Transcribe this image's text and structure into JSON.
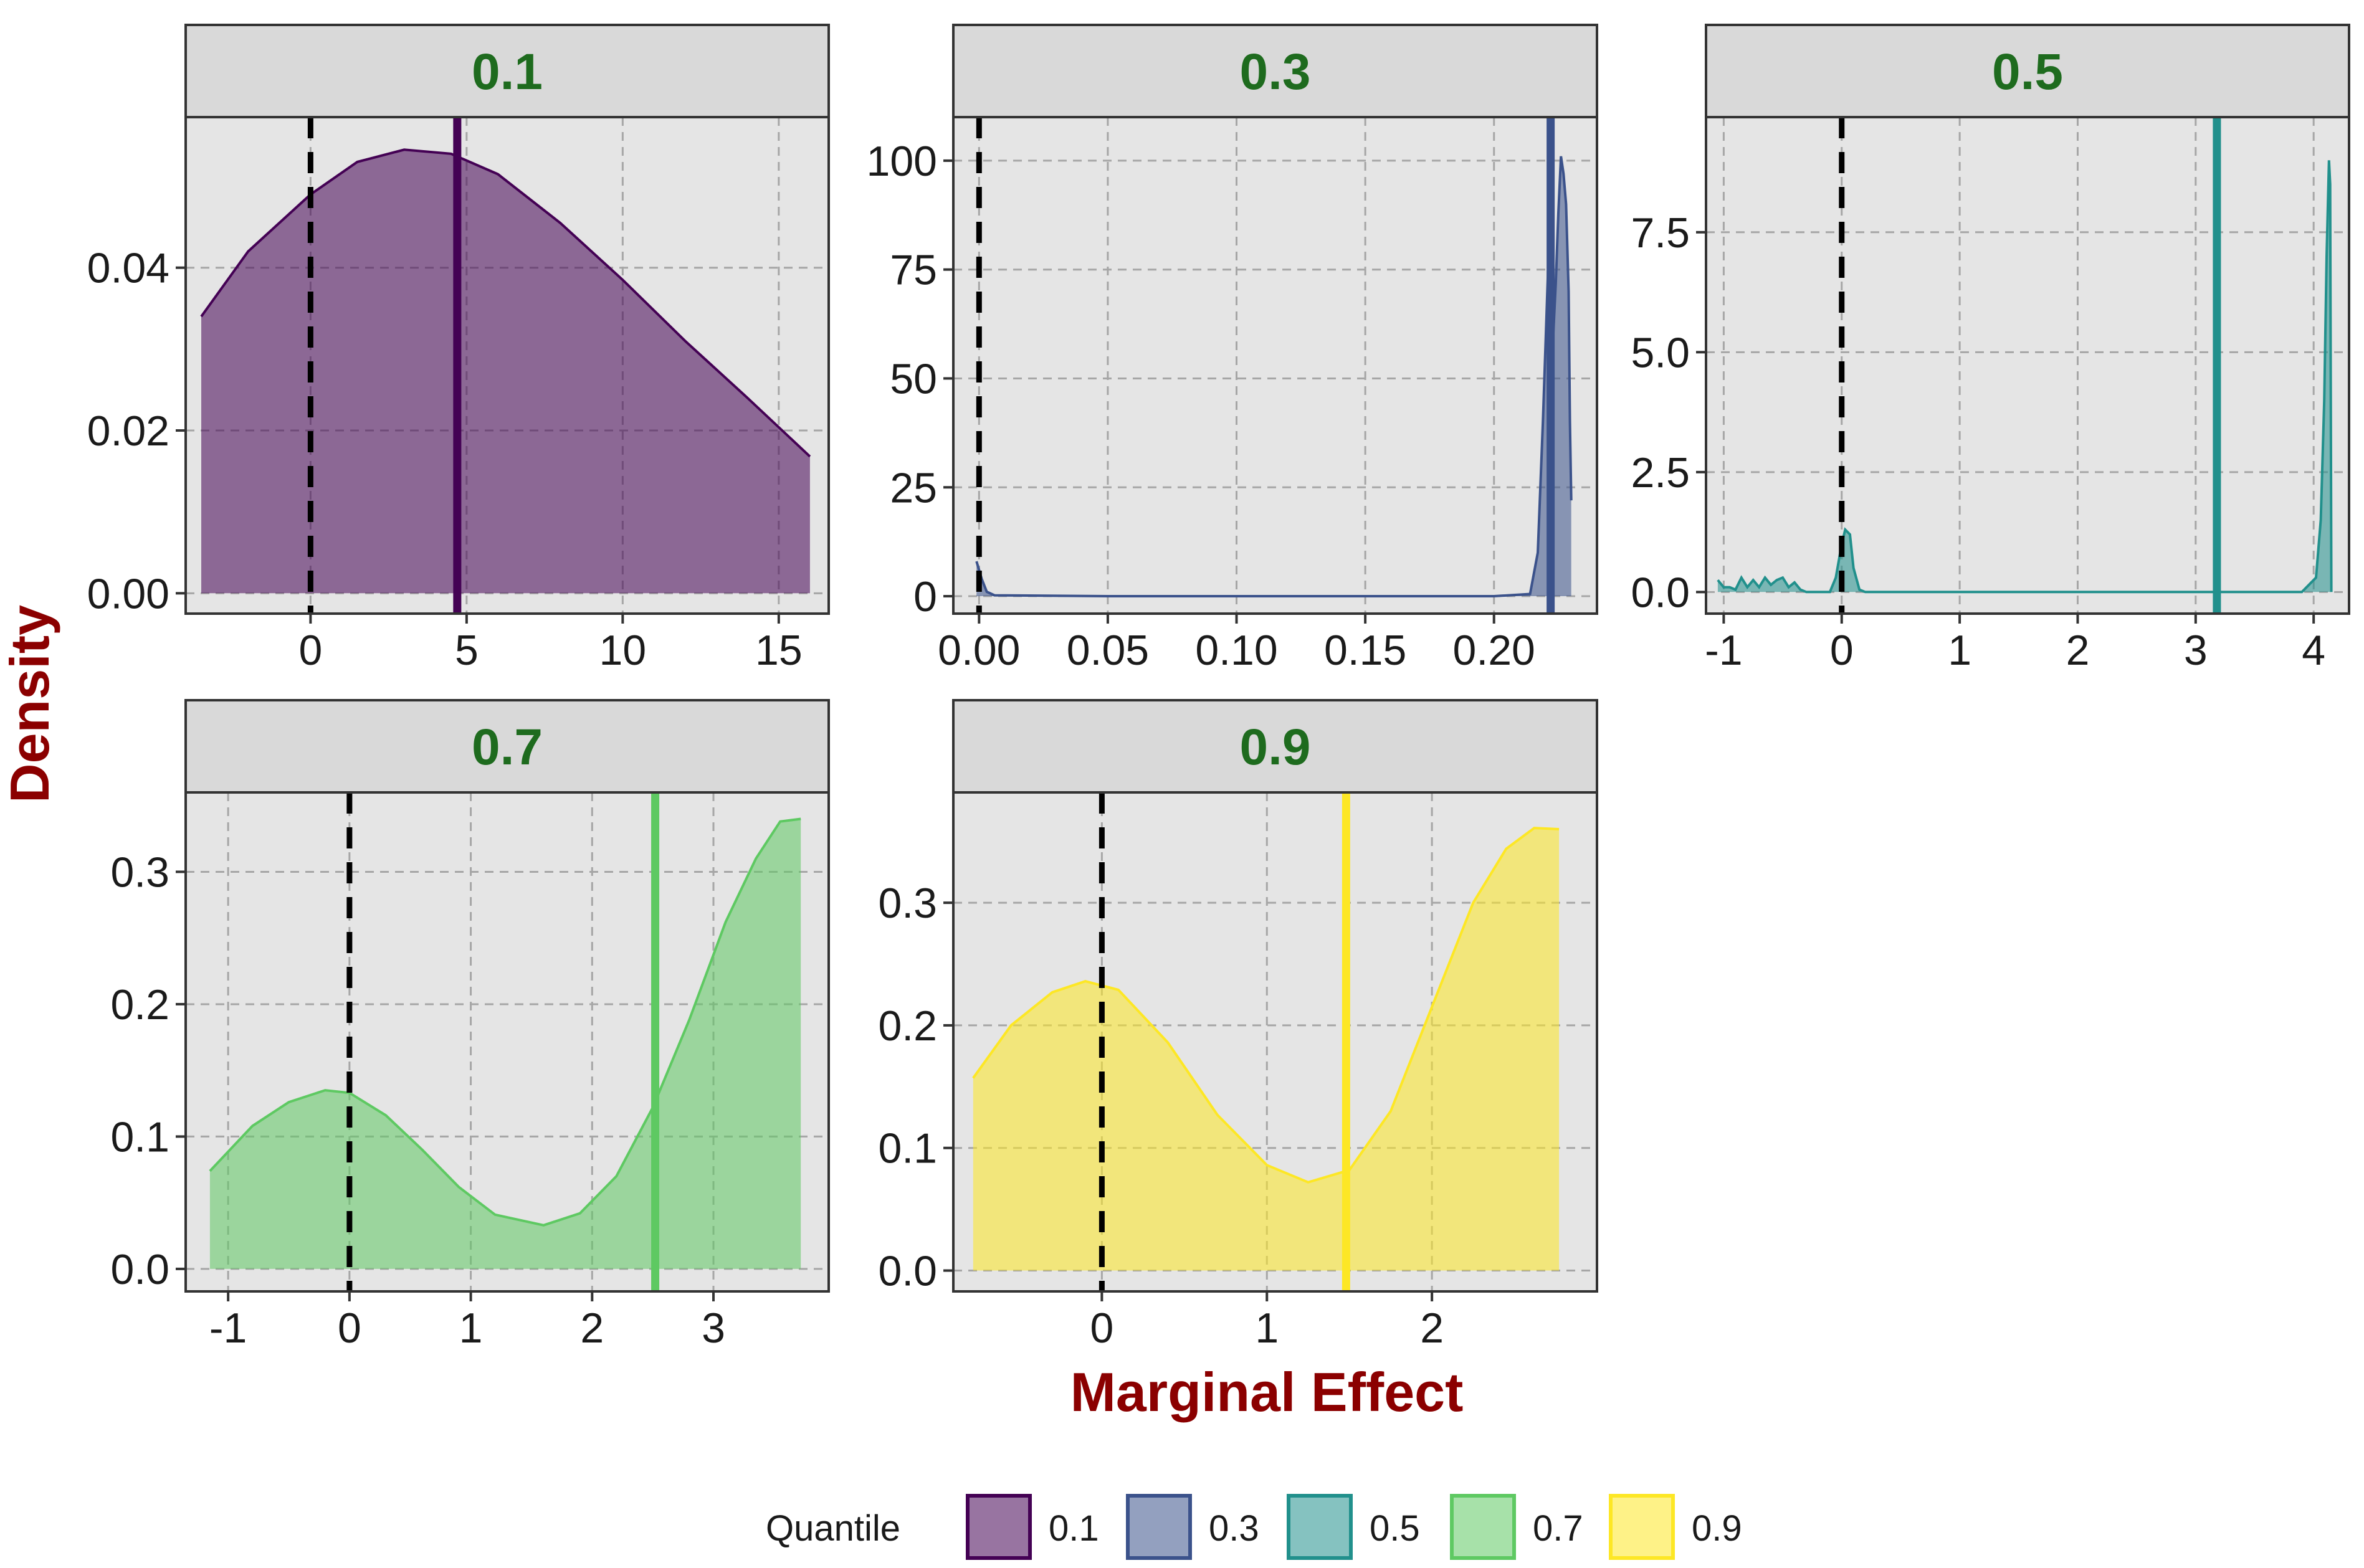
{
  "axes": {
    "xlabel": "Marginal Effect",
    "ylabel": "Density",
    "label_color": "#8b0000",
    "strip_text_color": "#1e6b1e",
    "panel_background": "#e5e5e5",
    "strip_background": "#d9d9d9",
    "grid": "dashed"
  },
  "legend": {
    "title": "Quantile",
    "position": "bottom",
    "items": [
      {
        "label": "0.1",
        "color": "#440154"
      },
      {
        "label": "0.3",
        "color": "#3b528b"
      },
      {
        "label": "0.5",
        "color": "#21908c"
      },
      {
        "label": "0.7",
        "color": "#5ec962"
      },
      {
        "label": "0.9",
        "color": "#fde725"
      }
    ]
  },
  "chart_data": [
    {
      "type": "area",
      "facet": "0.1",
      "color": "#440154",
      "fill_opacity": 0.55,
      "xlim": [
        -4,
        16.6
      ],
      "ylim": [
        -0.0025,
        0.0585
      ],
      "x_ticks": [
        {
          "value": 0,
          "label": "0"
        },
        {
          "value": 5,
          "label": "5"
        },
        {
          "value": 10,
          "label": "10"
        },
        {
          "value": 15,
          "label": "15"
        }
      ],
      "y_ticks": [
        {
          "value": 0,
          "label": "0.00"
        },
        {
          "value": 0.02,
          "label": "0.02"
        },
        {
          "value": 0.04,
          "label": "0.04"
        }
      ],
      "zero_line": 0,
      "marker_line": 4.7,
      "points": [
        [
          -3.5,
          0.034
        ],
        [
          -2,
          0.042
        ],
        [
          0,
          0.049
        ],
        [
          1.5,
          0.053
        ],
        [
          3,
          0.0545
        ],
        [
          4.5,
          0.054
        ],
        [
          6,
          0.0515
        ],
        [
          8,
          0.0455
        ],
        [
          10,
          0.0385
        ],
        [
          12,
          0.031
        ],
        [
          14,
          0.024
        ],
        [
          16,
          0.0168
        ]
      ]
    },
    {
      "type": "area",
      "facet": "0.3",
      "color": "#3b528b",
      "fill_opacity": 0.55,
      "xlim": [
        -0.01,
        0.24
      ],
      "ylim": [
        -4,
        110
      ],
      "x_ticks": [
        {
          "value": 0,
          "label": "0.00"
        },
        {
          "value": 0.05,
          "label": "0.05"
        },
        {
          "value": 0.1,
          "label": "0.10"
        },
        {
          "value": 0.15,
          "label": "0.15"
        },
        {
          "value": 0.2,
          "label": "0.20"
        }
      ],
      "y_ticks": [
        {
          "value": 0,
          "label": "0"
        },
        {
          "value": 25,
          "label": "25"
        },
        {
          "value": 50,
          "label": "50"
        },
        {
          "value": 75,
          "label": "75"
        },
        {
          "value": 100,
          "label": "100"
        }
      ],
      "zero_line": 0,
      "marker_line": 0.222,
      "points": [
        [
          -0.001,
          8
        ],
        [
          0.001,
          4
        ],
        [
          0.003,
          1
        ],
        [
          0.006,
          0.2
        ],
        [
          0.05,
          0
        ],
        [
          0.1,
          0
        ],
        [
          0.15,
          0
        ],
        [
          0.2,
          0
        ],
        [
          0.214,
          0.5
        ],
        [
          0.217,
          10
        ],
        [
          0.219,
          40
        ],
        [
          0.221,
          75
        ],
        [
          0.222,
          92
        ],
        [
          0.223,
          60
        ],
        [
          0.224,
          72
        ],
        [
          0.225,
          88
        ],
        [
          0.226,
          101
        ],
        [
          0.227,
          97
        ],
        [
          0.228,
          90
        ],
        [
          0.229,
          70
        ],
        [
          0.2295,
          40
        ],
        [
          0.23,
          22
        ]
      ]
    },
    {
      "type": "area",
      "facet": "0.5",
      "color": "#21908c",
      "fill_opacity": 0.55,
      "xlim": [
        -1.15,
        4.3
      ],
      "ylim": [
        -0.45,
        9.9
      ],
      "x_ticks": [
        {
          "value": -1,
          "label": "-1"
        },
        {
          "value": 0,
          "label": "0"
        },
        {
          "value": 1,
          "label": "1"
        },
        {
          "value": 2,
          "label": "2"
        },
        {
          "value": 3,
          "label": "3"
        },
        {
          "value": 4,
          "label": "4"
        }
      ],
      "y_ticks": [
        {
          "value": 0,
          "label": "0.0"
        },
        {
          "value": 2.5,
          "label": "2.5"
        },
        {
          "value": 5,
          "label": "5.0"
        },
        {
          "value": 7.5,
          "label": "7.5"
        }
      ],
      "zero_line": 0,
      "marker_line": 3.18,
      "points": [
        [
          -1.05,
          0.25
        ],
        [
          -1,
          0.1
        ],
        [
          -0.95,
          0.1
        ],
        [
          -0.9,
          0.05
        ],
        [
          -0.85,
          0.3
        ],
        [
          -0.8,
          0.1
        ],
        [
          -0.75,
          0.25
        ],
        [
          -0.7,
          0.1
        ],
        [
          -0.65,
          0.3
        ],
        [
          -0.6,
          0.15
        ],
        [
          -0.55,
          0.25
        ],
        [
          -0.5,
          0.3
        ],
        [
          -0.45,
          0.1
        ],
        [
          -0.4,
          0.2
        ],
        [
          -0.35,
          0.05
        ],
        [
          -0.3,
          0
        ],
        [
          -0.1,
          0
        ],
        [
          -0.05,
          0.3
        ],
        [
          0,
          1
        ],
        [
          0.03,
          1.3
        ],
        [
          0.07,
          1.2
        ],
        [
          0.1,
          0.5
        ],
        [
          0.15,
          0.05
        ],
        [
          0.2,
          0
        ],
        [
          1,
          0
        ],
        [
          2,
          0
        ],
        [
          3,
          0
        ],
        [
          3.9,
          0
        ],
        [
          4.02,
          0.3
        ],
        [
          4.06,
          1.5
        ],
        [
          4.09,
          4
        ],
        [
          4.11,
          7
        ],
        [
          4.13,
          9
        ],
        [
          4.14,
          8.5
        ],
        [
          4.15,
          0
        ]
      ]
    },
    {
      "type": "area",
      "facet": "0.7",
      "color": "#5ec962",
      "fill_opacity": 0.55,
      "xlim": [
        -1.35,
        3.95
      ],
      "ylim": [
        -0.017,
        0.36
      ],
      "x_ticks": [
        {
          "value": -1,
          "label": "-1"
        },
        {
          "value": 0,
          "label": "0"
        },
        {
          "value": 1,
          "label": "1"
        },
        {
          "value": 2,
          "label": "2"
        },
        {
          "value": 3,
          "label": "3"
        }
      ],
      "y_ticks": [
        {
          "value": 0,
          "label": "0.0"
        },
        {
          "value": 0.1,
          "label": "0.1"
        },
        {
          "value": 0.2,
          "label": "0.2"
        },
        {
          "value": 0.3,
          "label": "0.3"
        }
      ],
      "zero_line": 0,
      "marker_line": 2.52,
      "points": [
        [
          -1.15,
          0.074
        ],
        [
          -0.8,
          0.108
        ],
        [
          -0.5,
          0.126
        ],
        [
          -0.2,
          0.135
        ],
        [
          0,
          0.133
        ],
        [
          0.3,
          0.116
        ],
        [
          0.6,
          0.09
        ],
        [
          0.9,
          0.062
        ],
        [
          1.2,
          0.041
        ],
        [
          1.6,
          0.033
        ],
        [
          1.9,
          0.042
        ],
        [
          2.2,
          0.07
        ],
        [
          2.5,
          0.122
        ],
        [
          2.8,
          0.188
        ],
        [
          3.1,
          0.262
        ],
        [
          3.35,
          0.31
        ],
        [
          3.55,
          0.338
        ],
        [
          3.72,
          0.34
        ]
      ]
    },
    {
      "type": "area",
      "facet": "0.9",
      "color": "#fde725",
      "fill_opacity": 0.55,
      "xlim": [
        -0.9,
        3.0
      ],
      "ylim": [
        -0.017,
        0.39
      ],
      "x_ticks": [
        {
          "value": 0,
          "label": "0"
        },
        {
          "value": 1,
          "label": "1"
        },
        {
          "value": 2,
          "label": "2"
        }
      ],
      "y_ticks": [
        {
          "value": 0,
          "label": "0.0"
        },
        {
          "value": 0.1,
          "label": "0.1"
        },
        {
          "value": 0.2,
          "label": "0.2"
        },
        {
          "value": 0.3,
          "label": "0.3"
        }
      ],
      "zero_line": 0,
      "marker_line": 1.48,
      "points": [
        [
          -0.78,
          0.157
        ],
        [
          -0.55,
          0.2
        ],
        [
          -0.3,
          0.227
        ],
        [
          -0.1,
          0.236
        ],
        [
          0.1,
          0.229
        ],
        [
          0.4,
          0.186
        ],
        [
          0.7,
          0.127
        ],
        [
          1.0,
          0.086
        ],
        [
          1.25,
          0.072
        ],
        [
          1.5,
          0.082
        ],
        [
          1.75,
          0.13
        ],
        [
          2.0,
          0.215
        ],
        [
          2.25,
          0.3
        ],
        [
          2.45,
          0.344
        ],
        [
          2.62,
          0.361
        ],
        [
          2.77,
          0.36
        ]
      ]
    }
  ]
}
